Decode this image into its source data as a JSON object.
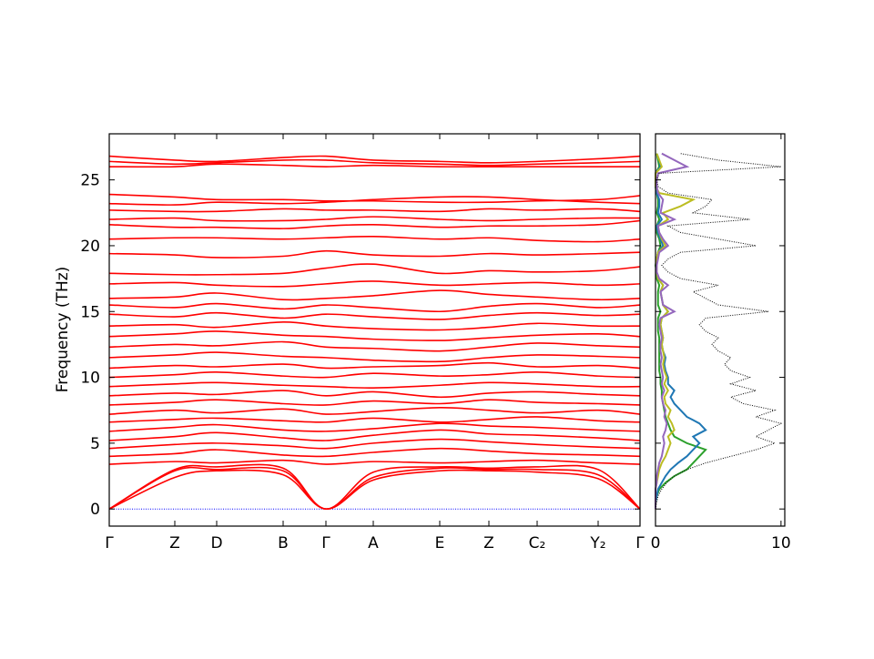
{
  "chart_data": {
    "type": "phonon",
    "ylabel": "Frequency (THz)",
    "ylim": [
      -1.3,
      28.5
    ],
    "yticks": [
      0,
      5,
      10,
      15,
      20,
      25
    ],
    "xlim": [
      0,
      583
    ],
    "xticks": [
      {
        "value": 0,
        "label": "Γ"
      },
      {
        "value": 72,
        "label": "Z"
      },
      {
        "value": 118,
        "label": "D"
      },
      {
        "value": 191,
        "label": "B"
      },
      {
        "value": 238,
        "label": "Γ"
      },
      {
        "value": 290,
        "label": "A"
      },
      {
        "value": 363,
        "label": "E"
      },
      {
        "value": 417,
        "label": "Z"
      },
      {
        "value": 470,
        "label": "C₂"
      },
      {
        "value": 537,
        "label": "Y₂"
      },
      {
        "value": 583,
        "label": "Γ"
      }
    ],
    "x": [
      0,
      72,
      118,
      191,
      238,
      290,
      363,
      417,
      470,
      537,
      583
    ],
    "band_color": "#ff0000",
    "zero_line_color": "#0000ff",
    "bands": [
      [
        0,
        2.4,
        2.9,
        2.6,
        0,
        2.2,
        2.9,
        2.9,
        2.8,
        2.3,
        0
      ],
      [
        0,
        2.9,
        3.0,
        2.9,
        0,
        2.4,
        3.1,
        3.0,
        3.0,
        2.6,
        0
      ],
      [
        0,
        3.0,
        3.2,
        3.1,
        0,
        2.8,
        3.2,
        3.1,
        3.2,
        3.0,
        0
      ],
      [
        3.4,
        3.6,
        3.5,
        3.7,
        3.4,
        3.6,
        3.5,
        3.6,
        3.7,
        3.5,
        3.4
      ],
      [
        4.0,
        4.2,
        4.5,
        4.1,
        4.0,
        4.3,
        4.6,
        4.4,
        4.2,
        4.1,
        4.0
      ],
      [
        4.6,
        4.9,
        5.0,
        4.8,
        4.6,
        5.0,
        5.3,
        5.1,
        4.9,
        4.7,
        4.6
      ],
      [
        5.2,
        5.5,
        5.8,
        5.4,
        5.2,
        5.6,
        6.0,
        5.7,
        5.6,
        5.4,
        5.2
      ],
      [
        5.9,
        6.2,
        6.4,
        6.0,
        5.9,
        6.1,
        6.5,
        6.3,
        6.2,
        6.0,
        5.9
      ],
      [
        6.6,
        6.8,
        6.9,
        6.7,
        6.6,
        6.9,
        6.6,
        6.8,
        7.0,
        6.7,
        6.6
      ],
      [
        7.2,
        7.5,
        7.3,
        7.6,
        7.2,
        7.4,
        7.7,
        7.5,
        7.3,
        7.5,
        7.2
      ],
      [
        7.9,
        8.1,
        8.3,
        8.0,
        7.9,
        8.2,
        8.0,
        8.3,
        8.1,
        8.0,
        7.9
      ],
      [
        8.6,
        8.8,
        8.7,
        9.0,
        8.6,
        8.9,
        8.5,
        8.8,
        8.9,
        8.7,
        8.6
      ],
      [
        9.3,
        9.5,
        9.6,
        9.4,
        9.3,
        9.2,
        9.4,
        9.6,
        9.5,
        9.3,
        9.3
      ],
      [
        10.0,
        10.2,
        10.4,
        10.1,
        10.0,
        10.3,
        10.1,
        10.2,
        10.4,
        10.1,
        10.0
      ],
      [
        10.7,
        10.9,
        10.8,
        11.0,
        10.7,
        10.8,
        10.9,
        11.1,
        10.8,
        10.9,
        10.7
      ],
      [
        11.5,
        11.7,
        11.9,
        11.6,
        11.5,
        11.3,
        11.2,
        11.5,
        11.7,
        11.6,
        11.5
      ],
      [
        12.3,
        12.5,
        12.4,
        12.7,
        12.3,
        12.2,
        12.0,
        12.3,
        12.6,
        12.4,
        12.3
      ],
      [
        13.1,
        13.3,
        13.5,
        13.2,
        13.1,
        12.9,
        12.8,
        13.0,
        13.2,
        13.3,
        13.1
      ],
      [
        13.9,
        14.0,
        13.8,
        14.2,
        13.9,
        13.7,
        13.6,
        13.8,
        14.1,
        13.9,
        13.9
      ],
      [
        14.8,
        14.6,
        14.9,
        14.5,
        14.8,
        14.6,
        14.4,
        14.7,
        14.9,
        14.7,
        14.8
      ],
      [
        15.5,
        15.3,
        15.6,
        15.2,
        15.5,
        15.3,
        15.0,
        15.4,
        15.6,
        15.3,
        15.5
      ],
      [
        16.0,
        16.1,
        16.4,
        15.9,
        16.0,
        16.2,
        16.6,
        16.3,
        16.1,
        15.9,
        16.0
      ],
      [
        17.1,
        17.2,
        17.0,
        16.9,
        17.1,
        17.3,
        17.0,
        17.1,
        17.2,
        17.0,
        17.1
      ],
      [
        17.9,
        17.8,
        17.8,
        17.9,
        18.3,
        18.6,
        17.9,
        18.1,
        18.0,
        18.1,
        18.4
      ],
      [
        19.4,
        19.3,
        19.1,
        19.2,
        19.6,
        19.3,
        19.2,
        19.4,
        19.3,
        19.4,
        19.5
      ],
      [
        20.5,
        20.6,
        20.6,
        20.5,
        20.6,
        20.7,
        20.5,
        20.6,
        20.4,
        20.3,
        20.5
      ],
      [
        21.6,
        21.4,
        21.4,
        21.3,
        21.5,
        21.6,
        21.4,
        21.5,
        21.5,
        21.6,
        21.9
      ],
      [
        22.0,
        22.1,
        21.9,
        21.9,
        22.0,
        22.2,
        22.0,
        21.9,
        22.0,
        22.1,
        22.1
      ],
      [
        22.7,
        22.6,
        22.6,
        22.8,
        22.7,
        22.7,
        22.6,
        22.8,
        22.7,
        22.8,
        22.6
      ],
      [
        23.2,
        23.1,
        23.3,
        23.2,
        23.3,
        23.5,
        23.7,
        23.7,
        23.5,
        23.3,
        23.2
      ],
      [
        23.9,
        23.7,
        23.5,
        23.5,
        23.4,
        23.4,
        23.3,
        23.3,
        23.4,
        23.5,
        23.8
      ],
      [
        26.0,
        26.0,
        26.2,
        26.1,
        26.0,
        26.1,
        26.0,
        26.0,
        26.0,
        26.0,
        26.0
      ],
      [
        26.4,
        26.2,
        26.3,
        26.5,
        26.5,
        26.3,
        26.2,
        26.1,
        26.2,
        26.3,
        26.4
      ],
      [
        26.8,
        26.5,
        26.4,
        26.7,
        26.8,
        26.5,
        26.4,
        26.3,
        26.4,
        26.6,
        26.8
      ]
    ],
    "dos_xlim": [
      0,
      10.3
    ],
    "dos_xticks": [
      0,
      10
    ],
    "dos_freq": [
      0,
      0.5,
      1,
      1.5,
      2,
      2.5,
      3,
      3.5,
      4,
      4.5,
      5,
      5.5,
      6,
      6.5,
      7,
      7.5,
      8,
      8.5,
      9,
      9.5,
      10,
      10.5,
      11,
      11.5,
      12,
      12.5,
      13,
      13.5,
      14,
      14.5,
      15,
      15.5,
      16,
      16.5,
      17,
      17.5,
      18,
      18.5,
      19,
      19.5,
      20,
      20.5,
      21,
      21.5,
      22,
      22.5,
      23,
      23.5,
      24,
      24.5,
      25,
      25.5,
      26,
      26.5,
      27
    ],
    "dos_total": {
      "color": "#000000",
      "values": [
        0,
        0.1,
        0.2,
        0.5,
        0.9,
        1.5,
        2.5,
        4,
        6,
        8,
        9.5,
        8,
        9,
        10,
        8,
        9.5,
        7,
        6,
        8,
        6,
        7.5,
        6,
        5.5,
        6,
        5,
        4.5,
        5,
        4,
        3.5,
        4,
        9,
        5,
        4,
        3,
        5,
        2,
        1,
        0.5,
        1,
        2,
        8,
        5,
        2,
        1,
        7.5,
        3,
        4,
        4.5,
        1,
        0.2,
        0.1,
        0.3,
        10,
        5,
        2
      ]
    },
    "dos_partials": [
      {
        "color": "#2ca02c",
        "values": [
          0,
          0,
          0.1,
          0.3,
          0.8,
          1.5,
          2.5,
          3,
          3.5,
          4,
          2.5,
          1.5,
          1.2,
          1,
          0.8,
          0.7,
          0.6,
          0.5,
          0.5,
          0.4,
          0.4,
          0.3,
          0.3,
          0.3,
          0.3,
          0.3,
          0.3,
          0.2,
          0.2,
          0.2,
          0.4,
          0.2,
          0.2,
          0.2,
          0.3,
          0.1,
          0.1,
          0,
          0.1,
          0.2,
          0.4,
          0.3,
          0.1,
          0.1,
          0.3,
          0.1,
          0.2,
          0.2,
          0.1,
          0,
          0,
          0,
          0.3,
          0.2,
          0.1
        ]
      },
      {
        "color": "#1f77b4",
        "values": [
          0,
          0,
          0.1,
          0.2,
          0.5,
          0.8,
          1.2,
          1.8,
          2.5,
          3,
          3.5,
          3,
          4,
          3.5,
          2.5,
          2,
          1.5,
          1.2,
          1.5,
          1,
          1,
          0.8,
          0.7,
          0.8,
          0.6,
          0.5,
          0.6,
          0.5,
          0.4,
          0.5,
          1,
          0.6,
          0.5,
          0.4,
          0.6,
          0.2,
          0.1,
          0.1,
          0.1,
          0.2,
          0.6,
          0.4,
          0.2,
          0.1,
          0.5,
          0.2,
          0.3,
          0.3,
          0.1,
          0,
          0,
          0,
          0.4,
          0.3,
          0.1
        ]
      },
      {
        "color": "#bcbd22",
        "values": [
          0,
          0,
          0,
          0,
          0.1,
          0.2,
          0.3,
          0.5,
          0.8,
          1,
          1.2,
          1,
          1.5,
          1.3,
          1,
          1.2,
          0.8,
          0.7,
          1,
          0.7,
          0.9,
          0.7,
          0.6,
          0.7,
          0.6,
          0.5,
          0.6,
          0.5,
          0.4,
          0.5,
          1,
          0.6,
          0.5,
          0.4,
          0.6,
          0.2,
          0.1,
          0.1,
          0.1,
          0.2,
          0.8,
          0.5,
          0.3,
          0.2,
          1,
          0.6,
          2,
          3,
          0.3,
          0,
          0,
          0,
          0.5,
          0.3,
          0.1
        ]
      },
      {
        "color": "#9467bd",
        "values": [
          0,
          0,
          0,
          0,
          0.1,
          0.1,
          0.2,
          0.3,
          0.5,
          0.6,
          0.7,
          0.6,
          0.8,
          0.9,
          0.7,
          0.8,
          0.6,
          0.5,
          0.7,
          0.5,
          0.6,
          0.5,
          0.4,
          0.5,
          0.4,
          0.4,
          0.5,
          0.4,
          0.3,
          0.4,
          1.5,
          0.6,
          0.5,
          0.4,
          1,
          0.3,
          0.1,
          0.1,
          0.2,
          0.3,
          1,
          0.6,
          0.3,
          0.2,
          1.5,
          0.4,
          0.5,
          0.6,
          0.2,
          0.1,
          0.1,
          0.2,
          2.5,
          1.5,
          0.5
        ]
      }
    ]
  }
}
